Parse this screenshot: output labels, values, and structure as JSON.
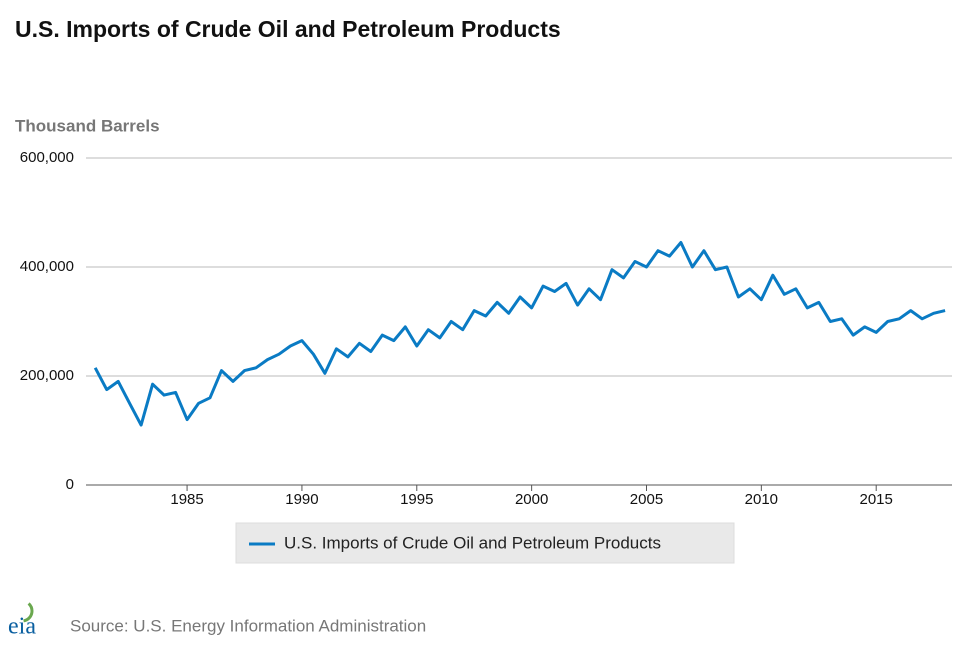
{
  "chart_data": {
    "type": "line",
    "title": "U.S. Imports of Crude Oil and Petroleum Products",
    "y_axis_label": "Thousand Barrels",
    "x": [
      1981.0,
      1981.5,
      1982.0,
      1982.5,
      1983.0,
      1983.5,
      1984.0,
      1984.5,
      1985.0,
      1985.5,
      1986.0,
      1986.5,
      1987.0,
      1987.5,
      1988.0,
      1988.5,
      1989.0,
      1989.5,
      1990.0,
      1990.5,
      1991.0,
      1991.5,
      1992.0,
      1992.5,
      1993.0,
      1993.5,
      1994.0,
      1994.5,
      1995.0,
      1995.5,
      1996.0,
      1996.5,
      1997.0,
      1997.5,
      1998.0,
      1998.5,
      1999.0,
      1999.5,
      2000.0,
      2000.5,
      2001.0,
      2001.5,
      2002.0,
      2002.5,
      2003.0,
      2003.5,
      2004.0,
      2004.5,
      2005.0,
      2005.5,
      2006.0,
      2006.5,
      2007.0,
      2007.5,
      2008.0,
      2008.5,
      2009.0,
      2009.5,
      2010.0,
      2010.5,
      2011.0,
      2011.5,
      2012.0,
      2012.5,
      2013.0,
      2013.5,
      2014.0,
      2014.5,
      2015.0,
      2015.5,
      2016.0,
      2016.5,
      2017.0,
      2017.5,
      2018.0
    ],
    "series": [
      {
        "name": "U.S. Imports of Crude Oil and Petroleum Products",
        "color": "#0a7bc4",
        "values": [
          215000,
          175000,
          190000,
          150000,
          110000,
          185000,
          165000,
          170000,
          120000,
          150000,
          160000,
          210000,
          190000,
          210000,
          215000,
          230000,
          240000,
          255000,
          265000,
          240000,
          205000,
          250000,
          235000,
          260000,
          245000,
          275000,
          265000,
          290000,
          255000,
          285000,
          270000,
          300000,
          285000,
          320000,
          310000,
          335000,
          315000,
          345000,
          325000,
          365000,
          355000,
          370000,
          330000,
          360000,
          340000,
          395000,
          380000,
          410000,
          400000,
          430000,
          420000,
          445000,
          400000,
          430000,
          395000,
          400000,
          345000,
          360000,
          340000,
          385000,
          350000,
          360000,
          325000,
          335000,
          300000,
          305000,
          275000,
          290000,
          280000,
          300000,
          305000,
          320000,
          305000,
          315000,
          320000
        ]
      }
    ],
    "xlim": [
      1980.6,
      2018.3
    ],
    "xticks": [
      1985,
      1990,
      1995,
      2000,
      2005,
      2010,
      2015
    ],
    "ylim": [
      0,
      600000
    ],
    "yticks": [
      0,
      {
        "value": 200000,
        "label": "200,000"
      },
      {
        "value": 400000,
        "label": "400,000"
      },
      {
        "value": 600000,
        "label": "600,000"
      }
    ],
    "grid": true,
    "legend_position": "bottom",
    "source": "Source: U.S. Energy Information Administration",
    "logo": "eia"
  }
}
